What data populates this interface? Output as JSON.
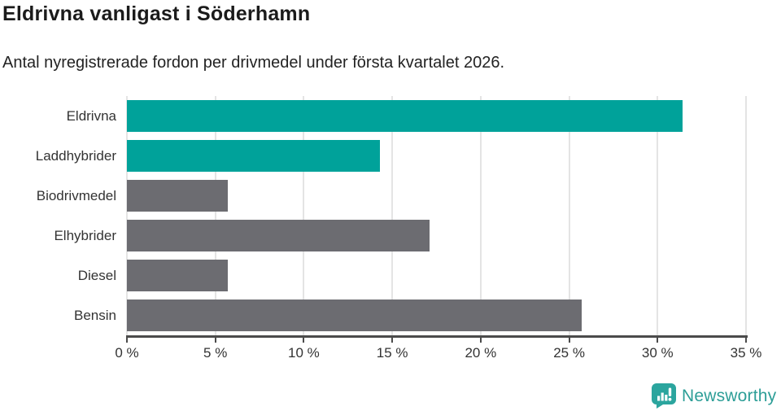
{
  "header": {
    "title": "Eldrivna vanligast i Söderhamn",
    "subtitle": "Antal nyregistrerade fordon per drivmedel under första kvartalet 2026."
  },
  "chart_data": {
    "type": "bar",
    "orientation": "horizontal",
    "categories": [
      "Eldrivna",
      "Laddhybrider",
      "Biodrivmedel",
      "Elhybrider",
      "Diesel",
      "Bensin"
    ],
    "values": [
      31.4,
      14.3,
      5.7,
      17.1,
      5.7,
      25.7
    ],
    "value_unit": "%",
    "bar_colors": [
      "#00a29a",
      "#00a29a",
      "#6c6c71",
      "#6c6c71",
      "#6c6c71",
      "#6c6c71"
    ],
    "xlim": [
      0,
      35
    ],
    "x_tick_labels": [
      "0 %",
      "5 %",
      "10 %",
      "15 %",
      "20 %",
      "25 %",
      "30 %",
      "35 %"
    ],
    "grid": true,
    "legend": "none",
    "xlabel": "",
    "ylabel": ""
  },
  "theme": {
    "accent_teal": "#00a29a",
    "bar_gray": "#6c6c71",
    "gridline": "#e4e4e4",
    "axis": "#4b4b4b",
    "text_dark": "#1b1b1b",
    "brand_teal": "#2d9e97",
    "background": "#ffffff"
  },
  "footer": {
    "brand": "Newsworthy",
    "logo_icon": "newsworthy-speech-bubble-bar-chart"
  }
}
